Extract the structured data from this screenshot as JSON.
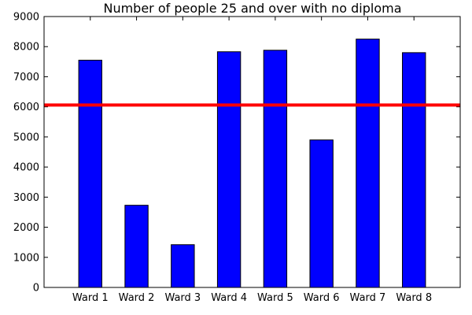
{
  "chart_data": {
    "type": "bar",
    "title": "Number of people 25 and over with no diploma",
    "xlabel": "",
    "ylabel": "",
    "categories": [
      "Ward 1",
      "Ward 2",
      "Ward 3",
      "Ward 4",
      "Ward 5",
      "Ward 6",
      "Ward 7",
      "Ward 8"
    ],
    "values": [
      7550,
      2730,
      1420,
      7830,
      7880,
      4900,
      8250,
      7800
    ],
    "ylim": [
      0,
      9000
    ],
    "yticks": [
      0,
      1000,
      2000,
      3000,
      4000,
      5000,
      6000,
      7000,
      8000,
      9000
    ],
    "reference_line": 6060,
    "grid": false,
    "legend": "none",
    "colors": {
      "bar_fill": "#0000ff",
      "bar_edge": "#000000",
      "reference_line": "#ff0000",
      "axes": "#000000"
    }
  }
}
